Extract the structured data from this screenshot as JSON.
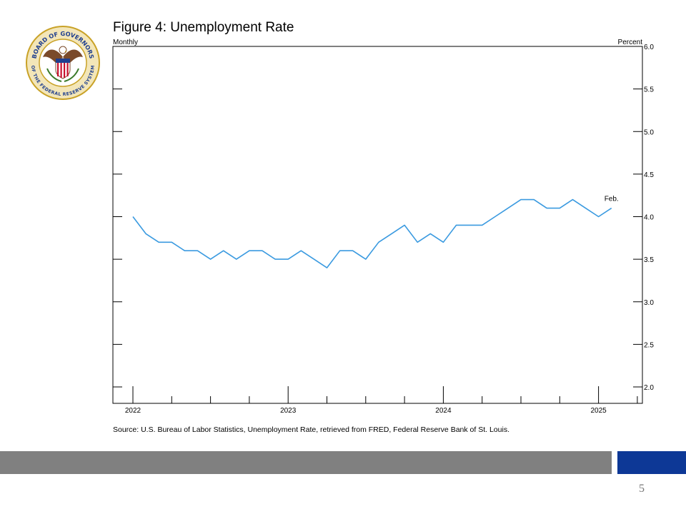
{
  "seal": {
    "text_top": "BOARD OF GOVERNORS",
    "text_bottom": "OF THE FEDERAL RESERVE SYSTEM",
    "colors": {
      "gold": "#c9a227",
      "brown": "#7a4a2a",
      "red": "#c8102e",
      "blue": "#1f3f8f"
    }
  },
  "chart_data": {
    "type": "line",
    "title": "Figure 4: Unemployment Rate",
    "frequency_label": "Monthly",
    "ylabel": "Percent",
    "ylim": [
      2.0,
      6.0
    ],
    "yticks": [
      "2.0",
      "2.5",
      "3.0",
      "3.5",
      "4.0",
      "4.5",
      "5.0",
      "5.5",
      "6.0"
    ],
    "xticks": [
      "2022",
      "2023",
      "2024",
      "2025"
    ],
    "start": "2022-01",
    "end_label": "Feb.",
    "series": [
      {
        "color": "#3a9ae0",
        "x": [
          "2022-01",
          "2022-02",
          "2022-03",
          "2022-04",
          "2022-05",
          "2022-06",
          "2022-07",
          "2022-08",
          "2022-09",
          "2022-10",
          "2022-11",
          "2022-12",
          "2023-01",
          "2023-02",
          "2023-03",
          "2023-04",
          "2023-05",
          "2023-06",
          "2023-07",
          "2023-08",
          "2023-09",
          "2023-10",
          "2023-11",
          "2023-12",
          "2024-01",
          "2024-02",
          "2024-03",
          "2024-04",
          "2024-05",
          "2024-06",
          "2024-07",
          "2024-08",
          "2024-09",
          "2024-10",
          "2024-11",
          "2024-12",
          "2025-01",
          "2025-02"
        ],
        "values": [
          4.0,
          3.8,
          3.7,
          3.7,
          3.6,
          3.6,
          3.5,
          3.6,
          3.5,
          3.6,
          3.6,
          3.5,
          3.5,
          3.6,
          3.5,
          3.4,
          3.6,
          3.6,
          3.5,
          3.7,
          3.8,
          3.9,
          3.7,
          3.8,
          3.7,
          3.9,
          3.9,
          3.9,
          4.0,
          4.1,
          4.2,
          4.2,
          4.1,
          4.1,
          4.2,
          4.1,
          4.0,
          4.1
        ]
      }
    ],
    "source": "Source: U.S. Bureau of Labor Statistics, Unemployment Rate, retrieved from FRED, Federal Reserve Bank of St. Louis."
  },
  "footer": {
    "page_number": "5",
    "colors": {
      "gray": "#808080",
      "blue": "#0d3896"
    }
  }
}
